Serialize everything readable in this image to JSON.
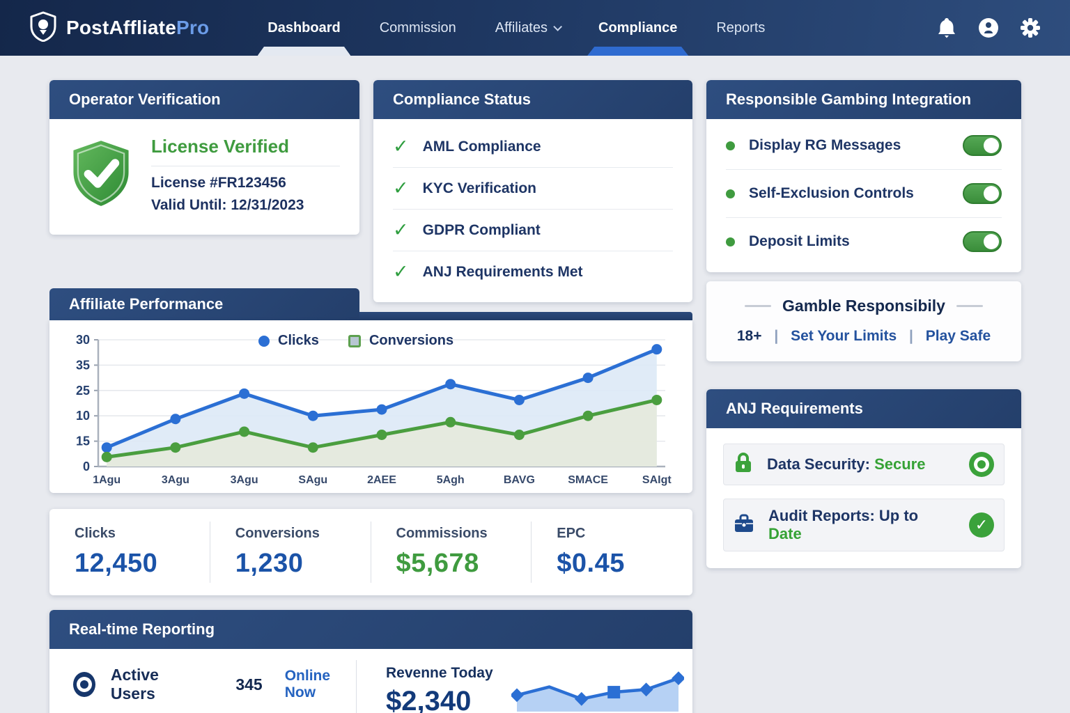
{
  "colors": {
    "nav_navy": "#1e3761",
    "card_header_navy": "#2a466f",
    "accent_blue": "#2b6fd4",
    "accent_green": "#3f9b3f",
    "value_blue": "#1b53a8",
    "value_green": "#3f9b3f",
    "active_tab_blue": "#2f6bd0"
  },
  "icons": {
    "brand": "shield-pin-icon",
    "notifications": "bell-icon",
    "account": "person-circle-icon",
    "settings": "gear-icon",
    "verified": "shield-check-icon",
    "check": "checkmark-icon",
    "active_users": "bullseye-icon",
    "data_security": "lock-icon",
    "audit_reports": "briefcase-icon",
    "secure_status": "target-circle-icon",
    "uptodate_status": "check-circle-icon"
  },
  "nav": {
    "brand_main": "PostAffliate",
    "brand_accent": "Pro",
    "items": [
      {
        "label": "Dashboard"
      },
      {
        "label": "Commission"
      },
      {
        "label": "Affiliates"
      },
      {
        "label": "Compliance"
      },
      {
        "label": "Reports"
      }
    ]
  },
  "operator_verification": {
    "title": "Operator Verification",
    "status": "License Verified",
    "license": "License #FR123456",
    "valid_until": "Valid Until: 12/31/2023"
  },
  "compliance_status": {
    "title": "Compliance Status",
    "items": [
      "AML Compliance",
      "KYC Verification",
      "GDPR Compliant",
      "ANJ Requirements Met"
    ]
  },
  "rg_integration": {
    "title": "Responsible Gambing Integration",
    "toggles": [
      {
        "label": "Display RG Messages",
        "on": true
      },
      {
        "label": "Self-Exclusion Controls",
        "on": true
      },
      {
        "label": "Deposit Limits",
        "on": true
      }
    ]
  },
  "gamble_responsibly": {
    "title": "Gamble Responsibily",
    "items": [
      "18+",
      "Set Your Limits",
      "Play Safe"
    ]
  },
  "affiliate_performance": {
    "title": "Affiliate Performance"
  },
  "stats": [
    {
      "label": "Clicks",
      "value": "12,450",
      "color": "blue"
    },
    {
      "label": "Conversions",
      "value": "1,230",
      "color": "blue"
    },
    {
      "label": "Commissions",
      "value": "$5,678",
      "color": "green"
    },
    {
      "label": "EPC",
      "value": "$0.45",
      "color": "blue"
    }
  ],
  "anj_requirements": {
    "title": "ANJ Requirements",
    "rows": [
      {
        "label": "Data Security:",
        "value": "Secure",
        "status": "target"
      },
      {
        "label": "Audit Reports:",
        "value_mid": "Up to",
        "value": "Date",
        "status": "check"
      }
    ]
  },
  "realtime": {
    "title": "Real-time Reporting",
    "active_users_label": "Active Users",
    "active_users_value": "345",
    "active_users_status": "Online Now",
    "revenue_label": "Revenne Today",
    "revenue_value": "$2,340"
  },
  "chart_data": [
    {
      "type": "line",
      "title": "Affiliate Performance",
      "categories": [
        "1Agu",
        "3Agu",
        "3Agu",
        "SAgu",
        "2AEE",
        "5Agh",
        "BAVG",
        "SMACE",
        "SAIgt"
      ],
      "y_tick_labels_top_to_bottom": [
        "30",
        "35",
        "25",
        "10",
        "15",
        "0"
      ],
      "ylim": [
        0,
        40
      ],
      "grid": true,
      "legend_position": "top-right",
      "series": [
        {
          "name": "Clicks",
          "marker": "dot",
          "color": "#2b6fd4",
          "fill": "#dde9f6",
          "values": [
            6,
            15,
            23,
            16,
            18,
            26,
            21,
            28,
            37
          ]
        },
        {
          "name": "Conversions",
          "marker": "square",
          "color": "#4a9e3f",
          "fill": "#e5eadb",
          "values": [
            3,
            6,
            11,
            6,
            10,
            14,
            10,
            16,
            21
          ]
        }
      ]
    },
    {
      "type": "area",
      "title": "Revenue Today sparkline",
      "x": [
        0,
        1,
        2,
        3,
        4,
        5
      ],
      "values": [
        40,
        62,
        30,
        48,
        55,
        85
      ],
      "markers": [
        "diamond",
        "none",
        "diamond",
        "square",
        "diamond",
        "diamond"
      ],
      "color": "#2b6fd4",
      "fill": "#a9c9f2",
      "ylim": [
        0,
        100
      ]
    }
  ]
}
